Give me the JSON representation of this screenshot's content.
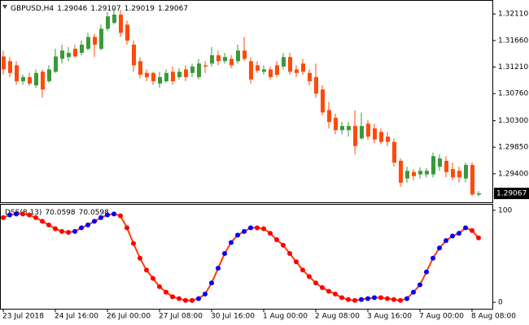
{
  "chart_data": [
    {
      "type": "candlestick",
      "title": "GBPUSD,H4",
      "categories": [
        "23 Jul 2018",
        null,
        null,
        null,
        null,
        null,
        null,
        null,
        "24 Jul 16:00",
        null,
        null,
        null,
        null,
        null,
        null,
        null,
        "26 Jul 00:00",
        null,
        null,
        null,
        null,
        null,
        null,
        null,
        "27 Jul 08:00",
        null,
        null,
        null,
        null,
        null,
        null,
        null,
        "30 Jul 16:00",
        null,
        null,
        null,
        null,
        null,
        null,
        null,
        "1 Aug 00:00",
        null,
        null,
        null,
        null,
        null,
        null,
        null,
        "2 Aug 08:00",
        null,
        null,
        null,
        null,
        null,
        null,
        null,
        "3 Aug 16:00",
        null,
        null,
        null,
        null,
        null,
        null,
        null,
        "7 Aug 00:00",
        null,
        null,
        null,
        null,
        null,
        null,
        null,
        "8 Aug 08:00",
        null
      ],
      "candles": [
        [
          1.3139,
          1.3149,
          1.3108,
          1.3117
        ],
        [
          1.3131,
          1.3138,
          1.3104,
          1.3111
        ],
        [
          1.3124,
          1.3131,
          1.3091,
          1.3097
        ],
        [
          1.3097,
          1.3108,
          1.3091,
          1.3104
        ],
        [
          1.3104,
          1.3111,
          1.3089,
          1.3093
        ],
        [
          1.309,
          1.3117,
          1.3086,
          1.3111
        ],
        [
          1.3113,
          1.3117,
          1.3069,
          1.3083
        ],
        [
          1.3097,
          1.3124,
          1.3094,
          1.3117
        ],
        [
          1.3113,
          1.3152,
          1.3111,
          1.3139
        ],
        [
          1.3135,
          1.3159,
          1.3127,
          1.3149
        ],
        [
          1.3138,
          1.3155,
          1.3131,
          1.3145
        ],
        [
          1.3152,
          1.3159,
          1.3138,
          1.3139
        ],
        [
          1.3145,
          1.3166,
          1.3141,
          1.3159
        ],
        [
          1.3152,
          1.3179,
          1.3149,
          1.3172
        ],
        [
          1.3172,
          1.3177,
          1.3138,
          1.3159
        ],
        [
          1.3152,
          1.3193,
          1.3149,
          1.3186
        ],
        [
          1.3186,
          1.3214,
          1.3182,
          1.3207
        ],
        [
          1.3196,
          1.3221,
          1.3193,
          1.321
        ],
        [
          1.321,
          1.3218,
          1.3172,
          1.3179
        ],
        [
          1.3193,
          1.32,
          1.3159,
          1.3166
        ],
        [
          1.3159,
          1.3166,
          1.3113,
          1.3124
        ],
        [
          1.3131,
          1.3138,
          1.3102,
          1.3108
        ],
        [
          1.3111,
          1.3117,
          1.3097,
          1.3104
        ],
        [
          1.3111,
          1.3113,
          1.3091,
          1.3097
        ],
        [
          1.3093,
          1.3113,
          1.3086,
          1.3104
        ],
        [
          1.3097,
          1.3117,
          1.3094,
          1.3111
        ],
        [
          1.3113,
          1.3122,
          1.3091,
          1.3097
        ],
        [
          1.3104,
          1.3119,
          1.31,
          1.3113
        ],
        [
          1.3117,
          1.3124,
          1.3097,
          1.3104
        ],
        [
          1.3111,
          1.3127,
          1.3104,
          1.3122
        ],
        [
          1.3104,
          1.3135,
          1.31,
          1.3127
        ],
        [
          1.3124,
          1.3131,
          1.3111,
          1.3122
        ],
        [
          1.3127,
          1.3155,
          1.3122,
          1.3141
        ],
        [
          1.3141,
          1.3149,
          1.3124,
          1.3131
        ],
        [
          1.3131,
          1.3145,
          1.3127,
          1.3138
        ],
        [
          1.3135,
          1.3141,
          1.3119,
          1.3124
        ],
        [
          1.3131,
          1.3159,
          1.3127,
          1.3149
        ],
        [
          1.3149,
          1.3172,
          1.3131,
          1.3135
        ],
        [
          1.3131,
          1.3138,
          1.3093,
          1.31
        ],
        [
          1.3124,
          1.3131,
          1.3111,
          1.3115
        ],
        [
          1.3113,
          1.3124,
          1.3108,
          1.3117
        ],
        [
          1.3117,
          1.3122,
          1.31,
          1.3104
        ],
        [
          1.3124,
          1.3131,
          1.3104,
          1.3108
        ],
        [
          1.3122,
          1.3145,
          1.3117,
          1.3138
        ],
        [
          1.3138,
          1.3145,
          1.3108,
          1.3113
        ],
        [
          1.3117,
          1.3124,
          1.3104,
          1.3111
        ],
        [
          1.3127,
          1.3135,
          1.3108,
          1.3113
        ],
        [
          1.3111,
          1.3117,
          1.309,
          1.3097
        ],
        [
          1.3104,
          1.3127,
          1.3069,
          1.3076
        ],
        [
          1.3083,
          1.309,
          1.3039,
          1.3044
        ],
        [
          1.3048,
          1.3062,
          1.3017,
          1.3028
        ],
        [
          1.3035,
          1.3042,
          1.3007,
          1.3014
        ],
        [
          1.3014,
          1.3028,
          1.3007,
          1.3021
        ],
        [
          1.3014,
          1.3028,
          1.3003,
          1.3021
        ],
        [
          1.3021,
          1.3048,
          1.2973,
          1.2987
        ],
        [
          1.3,
          1.3044,
          1.2998,
          1.3021
        ],
        [
          1.3025,
          1.3031,
          1.2998,
          1.3003
        ],
        [
          1.3017,
          1.3025,
          1.2992,
          1.2998
        ],
        [
          1.3011,
          1.3017,
          1.299,
          1.2994
        ],
        [
          1.3003,
          1.3011,
          1.2987,
          1.2994
        ],
        [
          1.2994,
          1.3,
          1.2952,
          1.2959
        ],
        [
          1.2962,
          1.2966,
          1.2918,
          1.2925
        ],
        [
          1.2932,
          1.2952,
          1.2925,
          1.2945
        ],
        [
          1.2943,
          1.2948,
          1.2929,
          1.2936
        ],
        [
          1.2939,
          1.2951,
          1.2932,
          1.2945
        ],
        [
          1.2939,
          1.295,
          1.2934,
          1.2945
        ],
        [
          1.2939,
          1.2976,
          1.2934,
          1.297
        ],
        [
          1.2952,
          1.2973,
          1.2945,
          1.2966
        ],
        [
          1.2962,
          1.297,
          1.2934,
          1.2943
        ],
        [
          1.2948,
          1.2959,
          1.2929,
          1.2934
        ],
        [
          1.2945,
          1.2952,
          1.2925,
          1.2934
        ],
        [
          1.2932,
          1.2959,
          1.2925,
          1.2955
        ],
        [
          1.2955,
          1.2959,
          1.2902,
          1.2905
        ],
        [
          1.29046,
          1.29107,
          1.29019,
          1.29067
        ]
      ],
      "up_color": "#3a9a3a",
      "down_color": "#ff4a0a",
      "ylim": [
        1.2893,
        1.3232
      ],
      "yticks": [
        {
          "value": 1.294,
          "label": "1.29400"
        },
        {
          "value": 1.2985,
          "label": "1.29850"
        },
        {
          "value": 1.303,
          "label": "1.30300"
        },
        {
          "value": 1.3076,
          "label": "1.30760"
        },
        {
          "value": 1.3121,
          "label": "1.31210"
        },
        {
          "value": 1.3166,
          "label": "1.31660"
        },
        {
          "value": 1.3211,
          "label": "1.32110"
        }
      ]
    },
    {
      "type": "line",
      "title": "DSS(8,13)",
      "series": [
        {
          "color": "#ff3c00",
          "values": [
            92,
            95,
            96,
            96,
            95,
            92,
            88,
            84,
            80,
            77,
            76,
            77,
            81,
            84,
            88,
            92,
            95,
            96,
            94,
            81,
            64,
            48,
            35,
            26,
            17,
            11,
            6,
            4,
            2,
            2,
            4,
            9,
            21,
            37,
            53,
            65,
            73,
            77,
            81,
            81,
            80,
            75,
            68,
            62,
            53,
            44,
            35,
            28,
            21,
            16,
            12,
            9,
            5,
            3,
            2,
            3,
            4,
            5,
            5,
            4,
            3,
            2,
            4,
            11,
            19,
            33,
            48,
            59,
            67,
            72,
            75,
            81,
            78,
            70.0598
          ]
        }
      ],
      "up_color": "#0000ff",
      "down_color": "#ff0000",
      "ylim": [
        -7,
        106
      ],
      "yticks": [
        0,
        100
      ]
    }
  ]
}
